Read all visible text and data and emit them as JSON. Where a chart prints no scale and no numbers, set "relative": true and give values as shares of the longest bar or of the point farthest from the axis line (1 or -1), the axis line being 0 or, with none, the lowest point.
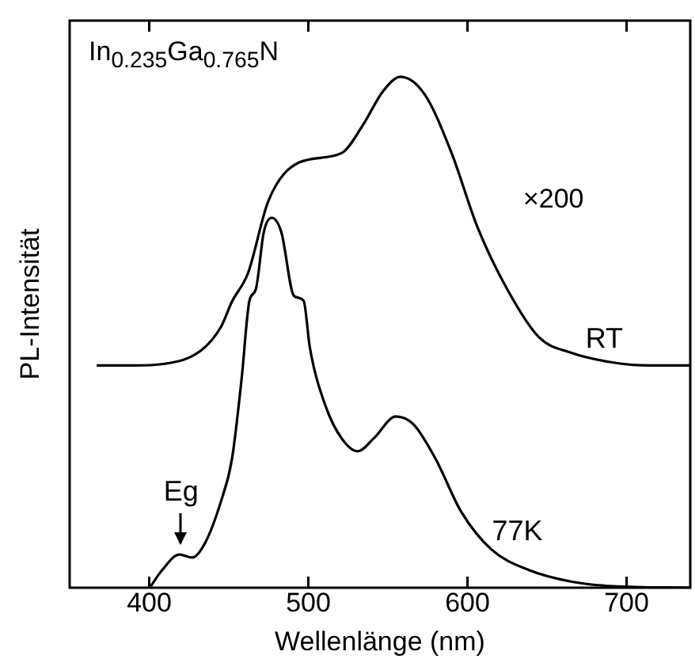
{
  "chart_data": {
    "type": "line",
    "relative": true,
    "xlabel": "Wellenlänge (nm)",
    "ylabel": "PL-Intensität",
    "xlim": [
      350,
      740
    ],
    "xticks": [
      400,
      500,
      600,
      700
    ],
    "tick_labels": "x",
    "grid": false,
    "legend": false,
    "marker": "none",
    "line_style": "solid",
    "annotations": [
      "In$_{0.235}$Ga$_{0.765}$N",
      "×200",
      {
        "text": "Eg",
        "x": 420,
        "y": 0.065
      }
    ],
    "series": [
      {
        "name": "RT",
        "color": "#000000",
        "x": [
          367,
          390,
          409,
          432,
          445,
          452,
          462,
          475,
          494,
          521,
          534,
          547,
          558,
          573,
          590,
          606,
          625,
          645,
          665,
          691,
          714,
          740
        ],
        "values": [
          0.435,
          0.435,
          0.438,
          0.463,
          0.51,
          0.56,
          0.615,
          0.758,
          0.832,
          0.851,
          0.904,
          0.972,
          1.0,
          0.966,
          0.851,
          0.708,
          0.584,
          0.49,
          0.46,
          0.441,
          0.435,
          0.435
        ]
      },
      {
        "name": "77K",
        "color": "#000000",
        "x": [
          401,
          408,
          419,
          427,
          435,
          445,
          452,
          458,
          463,
          467,
          472,
          477,
          483,
          491,
          497,
          501,
          511,
          521,
          531,
          541,
          555,
          566,
          580,
          596,
          615,
          639,
          665,
          691,
          740
        ],
        "values": [
          0.003,
          0.034,
          0.065,
          0.059,
          0.087,
          0.168,
          0.252,
          0.407,
          0.562,
          0.584,
          0.696,
          0.724,
          0.696,
          0.571,
          0.562,
          0.469,
          0.354,
          0.292,
          0.267,
          0.292,
          0.335,
          0.32,
          0.252,
          0.149,
          0.075,
          0.034,
          0.012,
          0.003,
          0
        ]
      }
    ]
  }
}
